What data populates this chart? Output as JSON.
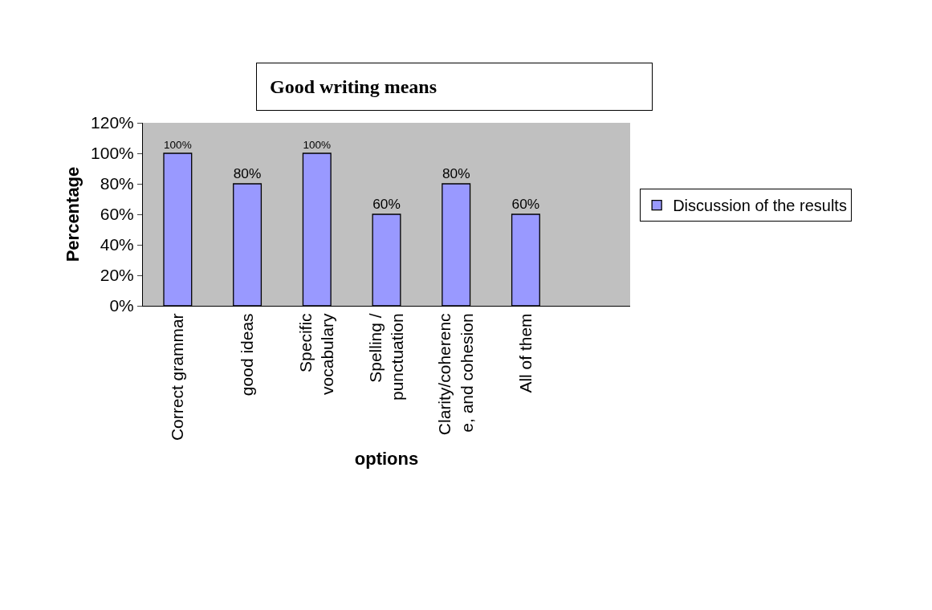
{
  "chart_data": {
    "type": "bar",
    "title": "Good writing means",
    "xlabel": "options",
    "ylabel": "Percentage",
    "categories": [
      "Correct grammar",
      "good ideas",
      "Specific vocabulary",
      "Spelling / punctuation",
      "Clarity/coherence, and cohesion",
      "All of them",
      null
    ],
    "series": [
      {
        "name": "Discussion of the results",
        "color": "#9999ff",
        "values": [
          100,
          80,
          100,
          60,
          80,
          60,
          null
        ],
        "value_labels": [
          "100%",
          "80%",
          "100%",
          "60%",
          "80%",
          "60%",
          null
        ]
      }
    ],
    "ylim": [
      0,
      120
    ],
    "yticks": [
      {
        "value": 0,
        "label": "0%"
      },
      {
        "value": 20,
        "label": "20%"
      },
      {
        "value": 40,
        "label": "40%"
      },
      {
        "value": 60,
        "label": "60%"
      },
      {
        "value": 80,
        "label": "80%"
      },
      {
        "value": 100,
        "label": "100%"
      },
      {
        "value": 120,
        "label": "120%"
      }
    ],
    "grid": false,
    "legend": "right"
  }
}
